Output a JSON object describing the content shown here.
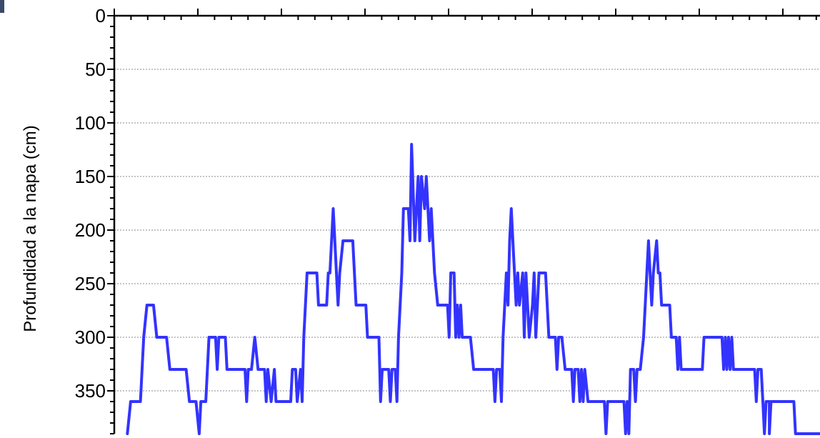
{
  "chart_data": {
    "type": "line",
    "title": "",
    "xlabel": "",
    "ylabel": "Profundidad a la napa (cm)",
    "y_inverted": true,
    "ylim": [
      0,
      390
    ],
    "y_ticks": [
      "0",
      "50",
      "100",
      "150",
      "200",
      "250",
      "300",
      "350"
    ],
    "grid": "horizontal dotted",
    "legend": "none",
    "series": [
      {
        "color": "#3333ff",
        "points": [
          [
            0,
            390
          ],
          [
            1,
            360
          ],
          [
            4,
            360
          ],
          [
            5,
            300
          ],
          [
            6,
            270
          ],
          [
            8,
            270
          ],
          [
            9,
            300
          ],
          [
            12,
            300
          ],
          [
            13,
            330
          ],
          [
            18,
            330
          ],
          [
            19,
            360
          ],
          [
            21,
            360
          ],
          [
            22,
            390
          ],
          [
            22.5,
            360
          ],
          [
            24,
            360
          ],
          [
            25,
            300
          ],
          [
            27,
            300
          ],
          [
            27.5,
            330
          ],
          [
            28,
            300
          ],
          [
            30,
            300
          ],
          [
            30.5,
            330
          ],
          [
            36,
            330
          ],
          [
            36.5,
            360
          ],
          [
            37,
            330
          ],
          [
            38,
            330
          ],
          [
            39,
            300
          ],
          [
            40,
            330
          ],
          [
            42,
            330
          ],
          [
            42.5,
            360
          ],
          [
            43,
            330
          ],
          [
            44,
            360
          ],
          [
            45,
            330
          ],
          [
            45.5,
            360
          ],
          [
            50,
            360
          ],
          [
            50.5,
            330
          ],
          [
            51.5,
            330
          ],
          [
            52,
            360
          ],
          [
            53,
            330
          ],
          [
            53.5,
            360
          ],
          [
            54,
            300
          ],
          [
            55,
            240
          ],
          [
            58,
            240
          ],
          [
            58.5,
            270
          ],
          [
            61,
            270
          ],
          [
            61.5,
            240
          ],
          [
            62,
            240
          ],
          [
            63,
            180
          ],
          [
            64,
            240
          ],
          [
            64.5,
            270
          ],
          [
            65,
            240
          ],
          [
            66,
            210
          ],
          [
            69,
            210
          ],
          [
            69.5,
            240
          ],
          [
            70,
            270
          ],
          [
            73,
            270
          ],
          [
            73.5,
            300
          ],
          [
            77,
            300
          ],
          [
            77.5,
            360
          ],
          [
            78,
            330
          ],
          [
            80,
            330
          ],
          [
            80.5,
            360
          ],
          [
            81,
            330
          ],
          [
            82,
            330
          ],
          [
            82.5,
            360
          ],
          [
            83,
            300
          ],
          [
            84,
            240
          ],
          [
            84.5,
            180
          ],
          [
            86,
            180
          ],
          [
            86.5,
            210
          ],
          [
            87,
            120
          ],
          [
            88,
            210
          ],
          [
            89,
            150
          ],
          [
            89.5,
            210
          ],
          [
            90,
            150
          ],
          [
            91,
            180
          ],
          [
            91.5,
            150
          ],
          [
            92,
            180
          ],
          [
            92.5,
            210
          ],
          [
            93,
            180
          ],
          [
            94,
            240
          ],
          [
            95,
            270
          ],
          [
            98,
            270
          ],
          [
            98.5,
            300
          ],
          [
            99,
            240
          ],
          [
            100,
            240
          ],
          [
            100.5,
            300
          ],
          [
            101,
            270
          ],
          [
            101.5,
            300
          ],
          [
            102,
            270
          ],
          [
            102.5,
            300
          ],
          [
            105,
            300
          ],
          [
            106,
            330
          ],
          [
            112,
            330
          ],
          [
            112.5,
            360
          ],
          [
            113,
            330
          ],
          [
            114,
            330
          ],
          [
            114.5,
            360
          ],
          [
            115,
            300
          ],
          [
            116,
            240
          ],
          [
            116.5,
            270
          ],
          [
            117,
            210
          ],
          [
            117.5,
            180
          ],
          [
            118,
            210
          ],
          [
            119,
            270
          ],
          [
            119.5,
            240
          ],
          [
            120,
            270
          ],
          [
            121,
            240
          ],
          [
            121.5,
            300
          ],
          [
            122,
            240
          ],
          [
            123,
            300
          ],
          [
            124,
            270
          ],
          [
            124.5,
            240
          ],
          [
            125,
            300
          ],
          [
            126,
            240
          ],
          [
            128,
            240
          ],
          [
            128.5,
            270
          ],
          [
            129,
            300
          ],
          [
            131,
            300
          ],
          [
            131.5,
            330
          ],
          [
            132,
            300
          ],
          [
            133,
            300
          ],
          [
            134,
            330
          ],
          [
            136,
            330
          ],
          [
            136.5,
            360
          ],
          [
            137,
            330
          ],
          [
            138,
            330
          ],
          [
            138.5,
            360
          ],
          [
            139,
            330
          ],
          [
            139.5,
            360
          ],
          [
            140,
            330
          ],
          [
            141,
            360
          ],
          [
            146,
            360
          ],
          [
            146.5,
            390
          ],
          [
            147,
            360
          ],
          [
            152,
            360
          ],
          [
            152.5,
            390
          ],
          [
            153,
            360
          ],
          [
            153.5,
            390
          ],
          [
            154,
            330
          ],
          [
            155,
            330
          ],
          [
            155.5,
            360
          ],
          [
            156,
            330
          ],
          [
            157,
            330
          ],
          [
            158,
            300
          ],
          [
            159,
            240
          ],
          [
            159.5,
            210
          ],
          [
            160,
            240
          ],
          [
            160.5,
            270
          ],
          [
            161,
            240
          ],
          [
            162,
            210
          ],
          [
            162.5,
            240
          ],
          [
            163,
            240
          ],
          [
            163.5,
            270
          ],
          [
            166,
            270
          ],
          [
            166.5,
            300
          ],
          [
            168,
            300
          ],
          [
            168.5,
            330
          ],
          [
            169,
            300
          ],
          [
            169.5,
            330
          ],
          [
            176,
            330
          ],
          [
            176.5,
            300
          ],
          [
            182,
            300
          ],
          [
            182.5,
            330
          ],
          [
            183,
            300
          ],
          [
            183.5,
            330
          ],
          [
            184,
            300
          ],
          [
            184.5,
            330
          ],
          [
            185,
            300
          ],
          [
            185.5,
            330
          ],
          [
            186,
            330
          ],
          [
            192,
            330
          ],
          [
            192.5,
            360
          ],
          [
            193,
            330
          ],
          [
            194,
            330
          ],
          [
            194.5,
            360
          ],
          [
            195,
            390
          ],
          [
            195.5,
            360
          ],
          [
            196.5,
            360
          ],
          [
            196.5,
            390
          ],
          [
            197,
            360
          ],
          [
            204,
            360
          ],
          [
            204.5,
            390
          ],
          [
            212,
            390
          ]
        ]
      }
    ],
    "xlim": [
      -4,
      212
    ]
  }
}
